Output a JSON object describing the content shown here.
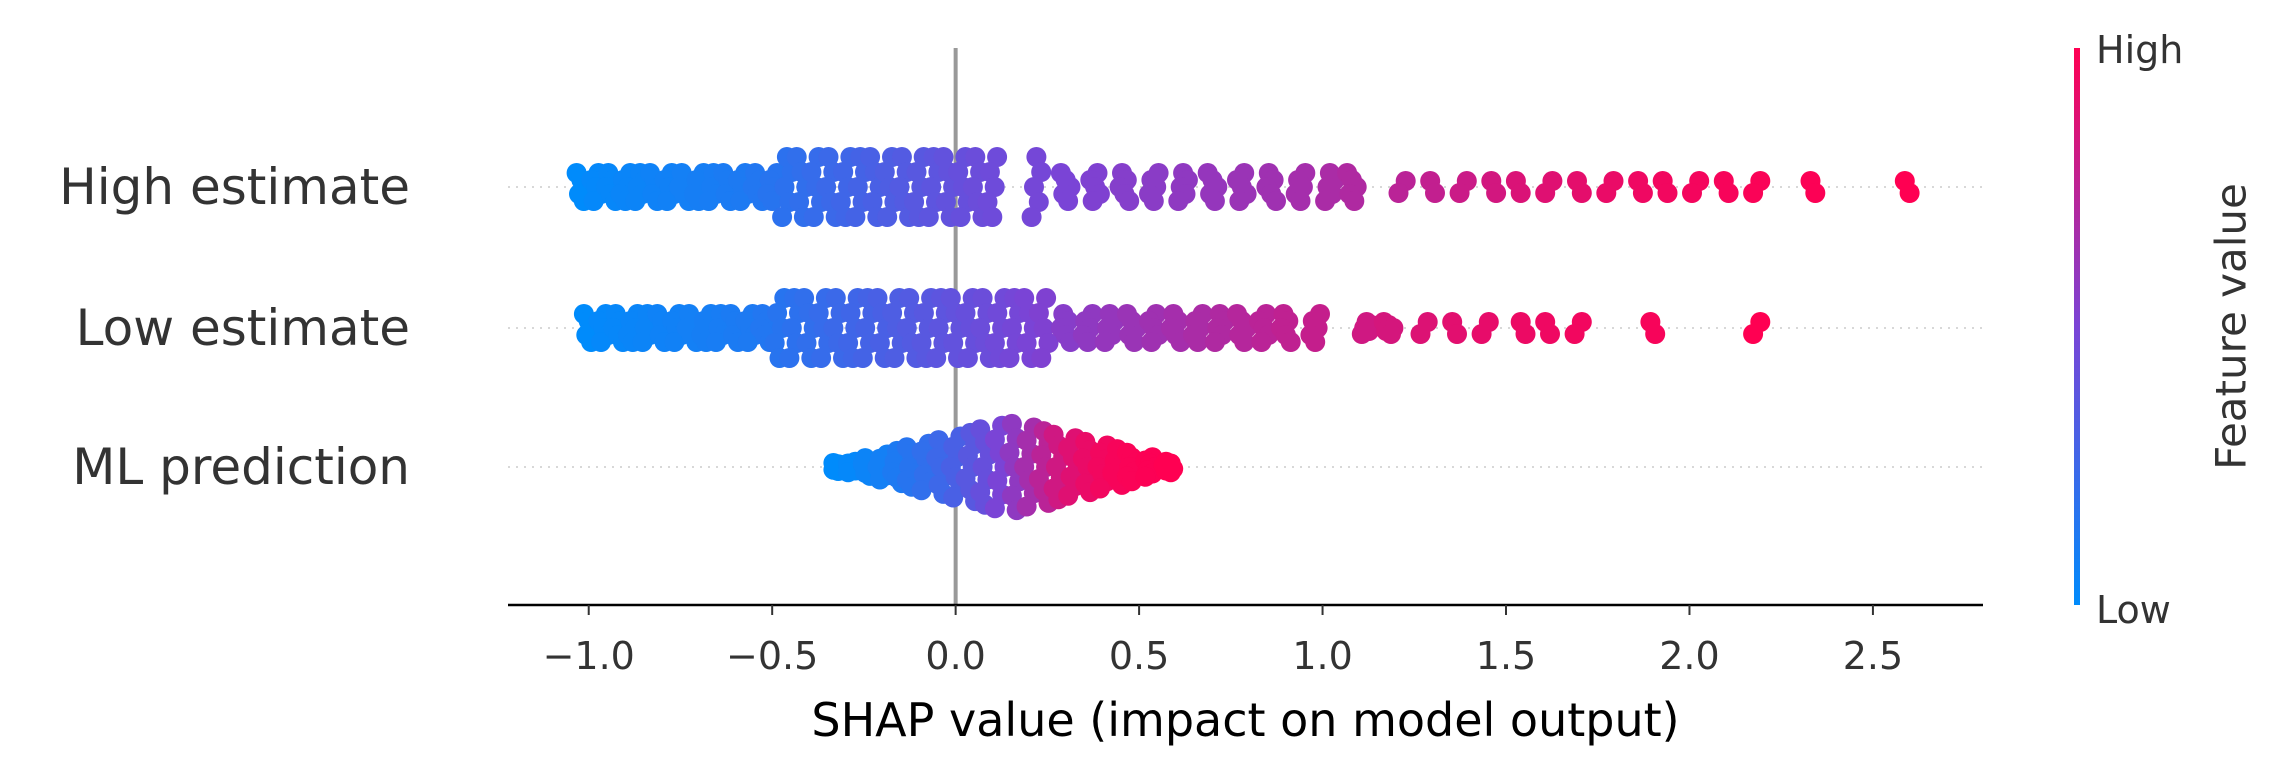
{
  "chart_data": {
    "type": "scatter",
    "subtype": "shap-beeswarm",
    "xlabel": "SHAP value (impact on model output)",
    "xlim": [
      -1.22,
      2.8
    ],
    "x_ticks": [
      -1.0,
      -0.5,
      0.0,
      0.5,
      1.0,
      1.5,
      2.0,
      2.5
    ],
    "x_tick_labels": [
      "−1.0",
      "−0.5",
      "0.0",
      "0.5",
      "1.0",
      "1.5",
      "2.0",
      "2.5"
    ],
    "zero_line": true,
    "grid": false,
    "colors": {
      "low": "#008bfb",
      "high": "#ff0052",
      "zero_line": "#999999",
      "axis": "#000000"
    },
    "features": [
      {
        "name": "High estimate",
        "points": [
          {
            "x": -1.02,
            "v": 0.0
          },
          {
            "x": -0.98,
            "v": 0.02
          },
          {
            "x": -0.94,
            "v": 0.03
          },
          {
            "x": -0.9,
            "v": 0.04
          },
          {
            "x": -0.86,
            "v": 0.05
          },
          {
            "x": -0.82,
            "v": 0.06
          },
          {
            "x": -0.78,
            "v": 0.07
          },
          {
            "x": -0.74,
            "v": 0.08
          },
          {
            "x": -0.7,
            "v": 0.09
          },
          {
            "x": -0.66,
            "v": 0.1
          },
          {
            "x": -0.62,
            "v": 0.11
          },
          {
            "x": -0.58,
            "v": 0.12
          },
          {
            "x": -0.54,
            "v": 0.14
          },
          {
            "x": -0.5,
            "v": 0.16
          },
          {
            "x": -0.46,
            "v": 0.18
          },
          {
            "x": -0.42,
            "v": 0.2
          },
          {
            "x": -0.38,
            "v": 0.22
          },
          {
            "x": -0.34,
            "v": 0.24
          },
          {
            "x": -0.3,
            "v": 0.26
          },
          {
            "x": -0.26,
            "v": 0.28
          },
          {
            "x": -0.22,
            "v": 0.3
          },
          {
            "x": -0.18,
            "v": 0.32
          },
          {
            "x": -0.14,
            "v": 0.34
          },
          {
            "x": -0.1,
            "v": 0.36
          },
          {
            "x": -0.06,
            "v": 0.38
          },
          {
            "x": -0.02,
            "v": 0.4
          },
          {
            "x": 0.02,
            "v": 0.42
          },
          {
            "x": 0.06,
            "v": 0.44
          },
          {
            "x": 0.1,
            "v": 0.45
          },
          {
            "x": 0.22,
            "v": 0.48
          },
          {
            "x": 0.3,
            "v": 0.5
          },
          {
            "x": 0.38,
            "v": 0.52
          },
          {
            "x": 0.46,
            "v": 0.54
          },
          {
            "x": 0.54,
            "v": 0.56
          },
          {
            "x": 0.62,
            "v": 0.58
          },
          {
            "x": 0.7,
            "v": 0.6
          },
          {
            "x": 0.78,
            "v": 0.62
          },
          {
            "x": 0.86,
            "v": 0.64
          },
          {
            "x": 0.94,
            "v": 0.66
          },
          {
            "x": 1.02,
            "v": 0.68
          },
          {
            "x": 1.08,
            "v": 0.7
          },
          {
            "x": 1.22,
            "v": 0.74
          },
          {
            "x": 1.3,
            "v": 0.77
          },
          {
            "x": 1.38,
            "v": 0.8
          },
          {
            "x": 1.46,
            "v": 0.83
          },
          {
            "x": 1.54,
            "v": 0.86
          },
          {
            "x": 1.62,
            "v": 0.88
          },
          {
            "x": 1.7,
            "v": 0.9
          },
          {
            "x": 1.78,
            "v": 0.92
          },
          {
            "x": 1.86,
            "v": 0.94
          },
          {
            "x": 1.94,
            "v": 0.95
          },
          {
            "x": 2.02,
            "v": 0.96
          },
          {
            "x": 2.1,
            "v": 0.97
          },
          {
            "x": 2.18,
            "v": 0.98
          },
          {
            "x": 2.33,
            "v": 0.99
          },
          {
            "x": 2.6,
            "v": 1.0
          }
        ]
      },
      {
        "name": "Low estimate",
        "points": [
          {
            "x": -1.0,
            "v": 0.0
          },
          {
            "x": -0.96,
            "v": 0.02
          },
          {
            "x": -0.92,
            "v": 0.03
          },
          {
            "x": -0.88,
            "v": 0.04
          },
          {
            "x": -0.84,
            "v": 0.05
          },
          {
            "x": -0.8,
            "v": 0.06
          },
          {
            "x": -0.76,
            "v": 0.07
          },
          {
            "x": -0.72,
            "v": 0.08
          },
          {
            "x": -0.68,
            "v": 0.09
          },
          {
            "x": -0.64,
            "v": 0.1
          },
          {
            "x": -0.6,
            "v": 0.11
          },
          {
            "x": -0.56,
            "v": 0.12
          },
          {
            "x": -0.52,
            "v": 0.14
          },
          {
            "x": -0.48,
            "v": 0.16
          },
          {
            "x": -0.44,
            "v": 0.18
          },
          {
            "x": -0.4,
            "v": 0.2
          },
          {
            "x": -0.36,
            "v": 0.22
          },
          {
            "x": -0.32,
            "v": 0.24
          },
          {
            "x": -0.28,
            "v": 0.26
          },
          {
            "x": -0.24,
            "v": 0.28
          },
          {
            "x": -0.2,
            "v": 0.3
          },
          {
            "x": -0.16,
            "v": 0.32
          },
          {
            "x": -0.12,
            "v": 0.34
          },
          {
            "x": -0.08,
            "v": 0.36
          },
          {
            "x": -0.04,
            "v": 0.38
          },
          {
            "x": 0.0,
            "v": 0.4
          },
          {
            "x": 0.04,
            "v": 0.42
          },
          {
            "x": 0.08,
            "v": 0.44
          },
          {
            "x": 0.12,
            "v": 0.46
          },
          {
            "x": 0.16,
            "v": 0.48
          },
          {
            "x": 0.2,
            "v": 0.5
          },
          {
            "x": 0.24,
            "v": 0.52
          },
          {
            "x": 0.3,
            "v": 0.55
          },
          {
            "x": 0.36,
            "v": 0.58
          },
          {
            "x": 0.42,
            "v": 0.6
          },
          {
            "x": 0.48,
            "v": 0.62
          },
          {
            "x": 0.54,
            "v": 0.64
          },
          {
            "x": 0.6,
            "v": 0.66
          },
          {
            "x": 0.66,
            "v": 0.68
          },
          {
            "x": 0.72,
            "v": 0.7
          },
          {
            "x": 0.78,
            "v": 0.72
          },
          {
            "x": 0.84,
            "v": 0.74
          },
          {
            "x": 0.9,
            "v": 0.76
          },
          {
            "x": 0.98,
            "v": 0.78
          },
          {
            "x": 1.12,
            "v": 0.82
          },
          {
            "x": 1.18,
            "v": 0.84
          },
          {
            "x": 1.28,
            "v": 0.87
          },
          {
            "x": 1.36,
            "v": 0.89
          },
          {
            "x": 1.44,
            "v": 0.91
          },
          {
            "x": 1.54,
            "v": 0.93
          },
          {
            "x": 1.62,
            "v": 0.94
          },
          {
            "x": 1.7,
            "v": 0.95
          },
          {
            "x": 1.9,
            "v": 0.97
          },
          {
            "x": 2.18,
            "v": 1.0
          }
        ]
      },
      {
        "name": "ML prediction",
        "points": [
          {
            "x": -0.32,
            "v": 0.0
          },
          {
            "x": -0.28,
            "v": 0.02
          },
          {
            "x": -0.24,
            "v": 0.05
          },
          {
            "x": -0.2,
            "v": 0.08
          },
          {
            "x": -0.16,
            "v": 0.12
          },
          {
            "x": -0.12,
            "v": 0.16
          },
          {
            "x": -0.08,
            "v": 0.2
          },
          {
            "x": -0.04,
            "v": 0.25
          },
          {
            "x": 0.0,
            "v": 0.3
          },
          {
            "x": 0.04,
            "v": 0.36
          },
          {
            "x": 0.08,
            "v": 0.42
          },
          {
            "x": 0.12,
            "v": 0.5
          },
          {
            "x": 0.16,
            "v": 0.58
          },
          {
            "x": 0.2,
            "v": 0.66
          },
          {
            "x": 0.24,
            "v": 0.74
          },
          {
            "x": 0.28,
            "v": 0.82
          },
          {
            "x": 0.32,
            "v": 0.88
          },
          {
            "x": 0.36,
            "v": 0.92
          },
          {
            "x": 0.4,
            "v": 0.95
          },
          {
            "x": 0.44,
            "v": 0.97
          },
          {
            "x": 0.48,
            "v": 0.98
          },
          {
            "x": 0.53,
            "v": 0.99
          },
          {
            "x": 0.58,
            "v": 1.0
          }
        ]
      }
    ],
    "colorbar": {
      "title": "Feature value",
      "high_label": "High",
      "low_label": "Low"
    }
  }
}
